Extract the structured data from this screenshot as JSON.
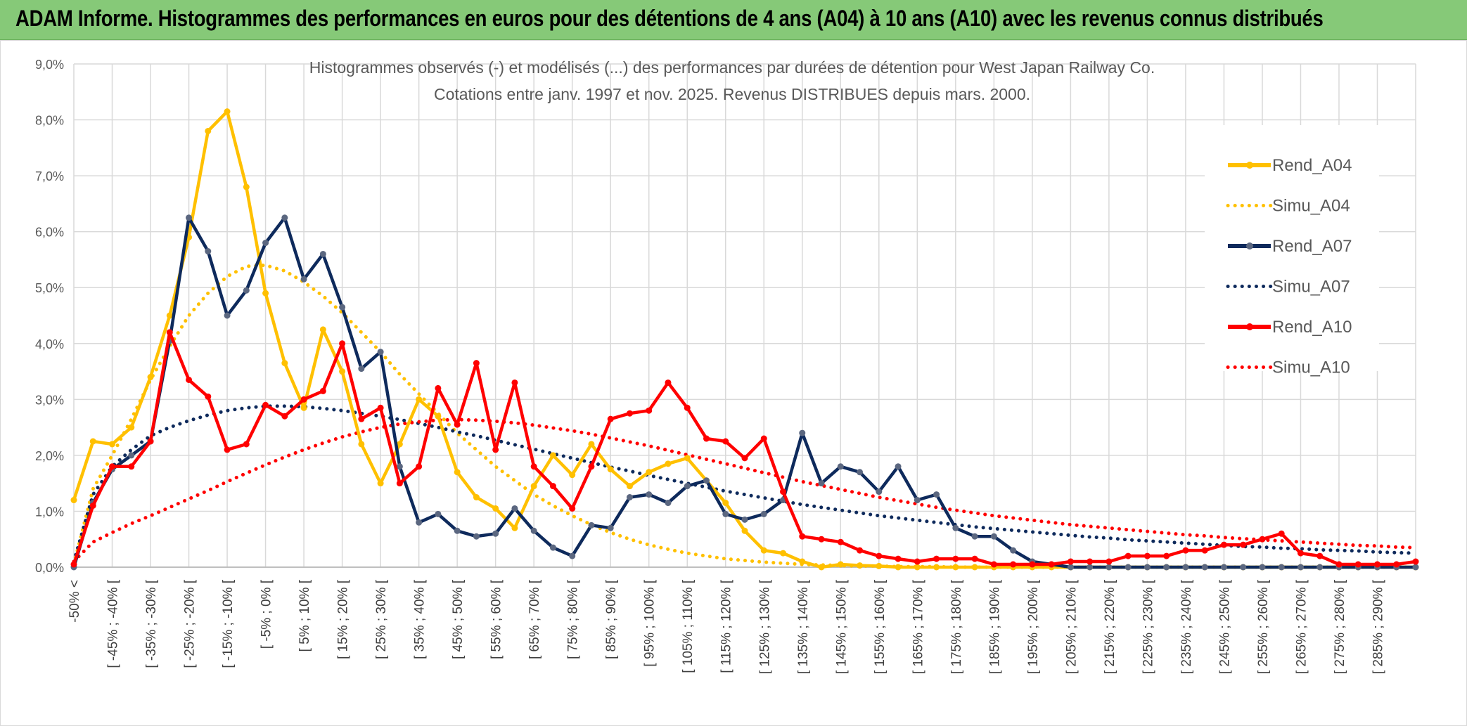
{
  "header": {
    "title": "ADAM Informe. Histogrammes des performances en euros pour des détentions de 4 ans (A04) à 10 ans (A10) avec les revenus connus distribués"
  },
  "colors": {
    "banner": "#86c978",
    "A04": "#ffc000",
    "A07": "#0e2a5c",
    "A10": "#ff0000",
    "A07_marker": "#5b6780",
    "grid": "#d9d9d9"
  },
  "chart_data": {
    "type": "line",
    "title": "Histogrammes observés (-) et modélisés (...) des performances par durées de détention pour West Japan Railway Co.",
    "subtitle": "Cotations entre janv. 1997 et nov. 2025. Revenus DISTRIBUES depuis mars. 2000.",
    "xlabel": "",
    "ylabel": "",
    "ylim": [
      0,
      9
    ],
    "y_unit": "%",
    "y_ticks": [
      "0,0%",
      "1,0%",
      "2,0%",
      "3,0%",
      "4,0%",
      "5,0%",
      "6,0%",
      "7,0%",
      "8,0%",
      "9,0%"
    ],
    "grid": true,
    "legend_position": "right",
    "categories": [
      "-50% <",
      "[ -50% ; -45% [",
      "[ -45% ; -40% [",
      "[ -40% ; -35% [",
      "[ -35% ; -30% [",
      "[ -30% ; -25% [",
      "[ -25% ; -20% [",
      "[ -20% ; -15% [",
      "[ -15% ; -10% [",
      "[ -10% ; -5% [",
      "[ -5% ; 0% [",
      "[ 0% ; 5% [",
      "[ 5% ; 10% [",
      "[ 10% ; 15% [",
      "[ 15% ; 20% [",
      "[ 20% ; 25% [",
      "[ 25% ; 30% [",
      "[ 30% ; 35% [",
      "[ 35% ; 40% [",
      "[ 40% ; 45% [",
      "[ 45% ; 50% [",
      "[ 50% ; 55% [",
      "[ 55% ; 60% [",
      "[ 60% ; 65% [",
      "[ 65% ; 70% [",
      "[ 70% ; 75% [",
      "[ 75% ; 80% [",
      "[ 80% ; 85% [",
      "[ 85% ; 90% [",
      "[ 90% ; 95% [",
      "[ 95% ; 100% [",
      "[ 100% ; 105% [",
      "[ 105% ; 110% [",
      "[ 110% ; 115% [",
      "[ 115% ; 120% [",
      "[ 120% ; 125% [",
      "[ 125% ; 130% [",
      "[ 130% ; 135% [",
      "[ 135% ; 140% [",
      "[ 140% ; 145% [",
      "[ 145% ; 150% [",
      "[ 150% ; 155% [",
      "[ 155% ; 160% [",
      "[ 160% ; 165% [",
      "[ 165% ; 170% [",
      "[ 170% ; 175% [",
      "[ 175% ; 180% [",
      "[ 180% ; 185% [",
      "[ 185% ; 190% [",
      "[ 190% ; 195% [",
      "[ 195% ; 200% [",
      "[ 200% ; 205% [",
      "[ 205% ; 210% [",
      "[ 210% ; 215% [",
      "[ 215% ; 220% [",
      "[ 220% ; 225% [",
      "[ 225% ; 230% [",
      "[ 230% ; 235% [",
      "[ 235% ; 240% [",
      "[ 240% ; 245% [",
      "[ 245% ; 250% [",
      "[ 250% ; 255% [",
      "[ 255% ; 260% [",
      "[ 260% ; 265% [",
      "[ 265% ; 270% [",
      "[ 270% ; 275% [",
      "[ 275% ; 280% [",
      "[ 280% ; 285% [",
      "[ 285% ; 290% [",
      "[ 290% ; 295% [",
      "[ 295% ; 300% ["
    ],
    "category_labels_shown": [
      "-50% <",
      "[ -45% ; -40% [",
      "[ -35% ; -30% [",
      "[ -25% ; -20% [",
      "[ -15% ; -10% [",
      "[ -5% ; 0% [",
      "[ 5% ; 10% [",
      "[ 15% ; 20% [",
      "[ 25% ; 30% [",
      "[ 35% ; 40% [",
      "[ 45% ; 50% [",
      "[ 55% ; 60% [",
      "[ 65% ; 70% [",
      "[ 75% ; 80% [",
      "[ 85% ; 90% [",
      "[ 95% ; 100% [",
      "[ 105% ; 110% [",
      "[ 115% ; 120% [",
      "[ 125% ; 130% [",
      "[ 135% ; 140% [",
      "[ 145% ; 150% [",
      "[ 155% ; 160% [",
      "[ 165% ; 170% [",
      "[ 175% ; 180% [",
      "[ 185% ; 190% [",
      "[ 195% ; 200% [",
      "[ 205% ; 210% [",
      "[ 215% ; 220% [",
      "[ 225% ; 230% [",
      "[ 235% ; 240% [",
      "[ 245% ; 250% [",
      "[ 255% ; 260% [",
      "[ 265% ; 270% [",
      "[ 275% ; 280% [",
      "[ 285% ; 290% ["
    ],
    "series": [
      {
        "name": "Rend_A04",
        "style": "solid",
        "color": "#ffc000",
        "values": [
          1.2,
          2.25,
          2.2,
          2.5,
          3.4,
          4.5,
          5.9,
          7.8,
          8.15,
          6.8,
          4.9,
          3.65,
          2.85,
          4.25,
          3.5,
          2.2,
          1.5,
          2.2,
          3.0,
          2.7,
          1.7,
          1.25,
          1.05,
          0.7,
          1.45,
          2.0,
          1.65,
          2.2,
          1.75,
          1.45,
          1.7,
          1.85,
          1.95,
          1.55,
          1.15,
          0.65,
          0.3,
          0.25,
          0.1,
          0.0,
          0.05,
          0.03,
          0.02,
          0,
          0,
          0,
          0,
          0,
          0,
          0,
          0,
          0,
          0,
          0,
          0,
          0,
          0,
          0,
          0,
          0,
          0,
          0,
          0,
          0,
          0,
          0,
          0,
          0,
          0,
          0,
          0
        ]
      },
      {
        "name": "Simu_A04",
        "style": "dotted",
        "color": "#ffc000",
        "values": [
          0.05,
          1.4,
          2.0,
          2.65,
          3.35,
          3.95,
          4.5,
          4.9,
          5.2,
          5.38,
          5.4,
          5.3,
          5.1,
          4.85,
          4.55,
          4.2,
          3.85,
          3.45,
          3.1,
          2.75,
          2.4,
          2.1,
          1.8,
          1.55,
          1.3,
          1.1,
          0.92,
          0.76,
          0.62,
          0.5,
          0.4,
          0.32,
          0.25,
          0.2,
          0.15,
          0.12,
          0.09,
          0.07,
          0.05,
          0.04,
          0.03,
          0.02,
          0.02,
          0.01,
          0.01,
          0.01,
          0.0,
          0.0,
          0,
          0,
          0,
          0,
          0,
          0,
          0,
          0,
          0,
          0,
          0,
          0,
          0,
          0,
          0,
          0,
          0,
          0,
          0,
          0,
          0,
          0,
          0
        ]
      },
      {
        "name": "Rend_A07",
        "style": "solid",
        "color": "#0e2a5c",
        "values": [
          0.0,
          1.15,
          1.75,
          2.0,
          2.25,
          4.05,
          6.25,
          5.65,
          4.5,
          4.95,
          5.8,
          6.25,
          5.15,
          5.6,
          4.65,
          3.55,
          3.85,
          1.8,
          0.8,
          0.95,
          0.65,
          0.55,
          0.6,
          1.05,
          0.65,
          0.35,
          0.2,
          0.75,
          0.7,
          1.25,
          1.3,
          1.15,
          1.45,
          1.55,
          0.95,
          0.85,
          0.95,
          1.2,
          2.4,
          1.5,
          1.8,
          1.7,
          1.35,
          1.8,
          1.2,
          1.3,
          0.7,
          0.55,
          0.55,
          0.3,
          0.1,
          0.05,
          0,
          0,
          0,
          0,
          0,
          0,
          0,
          0,
          0,
          0,
          0,
          0,
          0,
          0,
          0,
          0,
          0,
          0,
          0
        ]
      },
      {
        "name": "Simu_A07",
        "style": "dotted",
        "color": "#0e2a5c",
        "values": [
          0.1,
          1.3,
          1.8,
          2.1,
          2.35,
          2.5,
          2.62,
          2.72,
          2.8,
          2.85,
          2.88,
          2.88,
          2.87,
          2.84,
          2.8,
          2.75,
          2.7,
          2.64,
          2.57,
          2.5,
          2.42,
          2.35,
          2.27,
          2.19,
          2.11,
          2.03,
          1.95,
          1.87,
          1.79,
          1.72,
          1.64,
          1.57,
          1.5,
          1.43,
          1.36,
          1.3,
          1.24,
          1.18,
          1.12,
          1.07,
          1.02,
          0.97,
          0.92,
          0.88,
          0.84,
          0.8,
          0.76,
          0.72,
          0.69,
          0.66,
          0.63,
          0.6,
          0.57,
          0.54,
          0.52,
          0.49,
          0.47,
          0.45,
          0.43,
          0.41,
          0.39,
          0.37,
          0.36,
          0.34,
          0.33,
          0.31,
          0.3,
          0.29,
          0.27,
          0.26,
          0.25
        ]
      },
      {
        "name": "Rend_A10",
        "style": "solid",
        "color": "#ff0000",
        "values": [
          0.05,
          1.1,
          1.8,
          1.8,
          2.25,
          4.2,
          3.35,
          3.05,
          2.1,
          2.2,
          2.9,
          2.7,
          3.0,
          3.15,
          4.0,
          2.65,
          2.85,
          1.5,
          1.8,
          3.2,
          2.55,
          3.65,
          2.1,
          3.3,
          1.8,
          1.45,
          1.05,
          1.8,
          2.65,
          2.75,
          2.8,
          3.3,
          2.85,
          2.3,
          2.25,
          1.95,
          2.3,
          1.35,
          0.55,
          0.5,
          0.45,
          0.3,
          0.2,
          0.15,
          0.1,
          0.15,
          0.15,
          0.15,
          0.05,
          0.05,
          0.05,
          0.05,
          0.1,
          0.1,
          0.1,
          0.2,
          0.2,
          0.2,
          0.3,
          0.3,
          0.4,
          0.4,
          0.5,
          0.6,
          0.25,
          0.2,
          0.05,
          0.05,
          0.05,
          0.05,
          0.1
        ]
      },
      {
        "name": "Simu_A10",
        "style": "dotted",
        "color": "#ff0000",
        "values": [
          0.1,
          0.45,
          0.62,
          0.78,
          0.92,
          1.07,
          1.22,
          1.37,
          1.53,
          1.68,
          1.83,
          1.97,
          2.1,
          2.22,
          2.33,
          2.42,
          2.5,
          2.56,
          2.6,
          2.63,
          2.64,
          2.63,
          2.61,
          2.58,
          2.54,
          2.49,
          2.44,
          2.38,
          2.31,
          2.24,
          2.17,
          2.09,
          2.01,
          1.93,
          1.85,
          1.77,
          1.69,
          1.61,
          1.53,
          1.46,
          1.39,
          1.32,
          1.25,
          1.19,
          1.13,
          1.07,
          1.02,
          0.97,
          0.92,
          0.88,
          0.84,
          0.8,
          0.76,
          0.73,
          0.7,
          0.67,
          0.64,
          0.61,
          0.58,
          0.56,
          0.53,
          0.51,
          0.49,
          0.47,
          0.45,
          0.43,
          0.41,
          0.39,
          0.38,
          0.36,
          0.35
        ]
      }
    ]
  }
}
